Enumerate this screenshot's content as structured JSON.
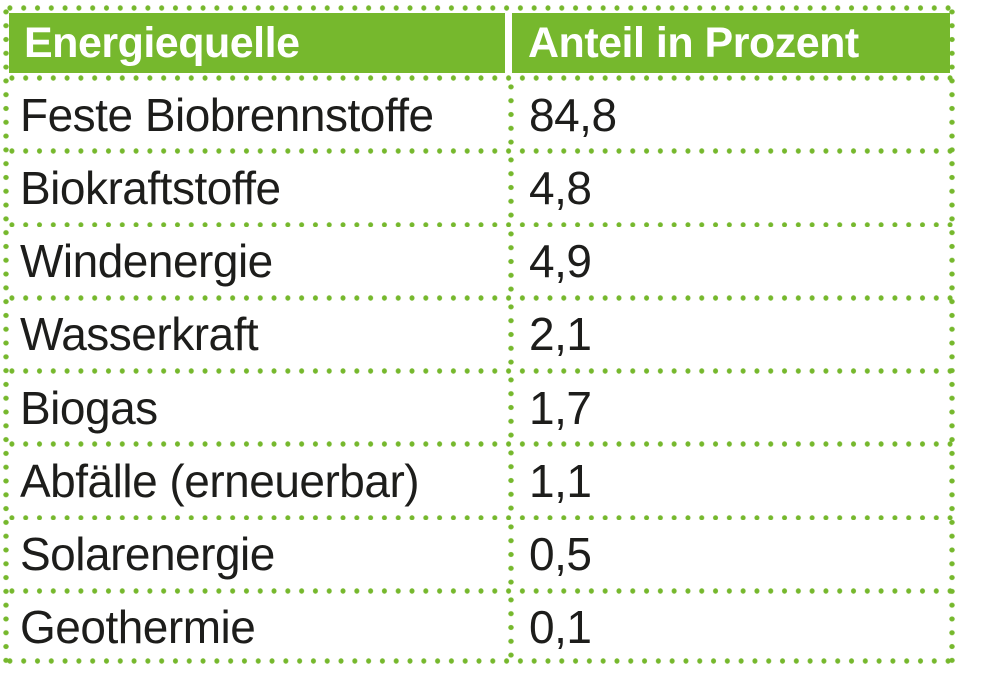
{
  "colors": {
    "accent_green": "#76b82d",
    "header_text": "#ffffff",
    "body_text": "#1d1d1b",
    "background": "#ffffff"
  },
  "table": {
    "headers": [
      {
        "label": "Energiequelle"
      },
      {
        "label": "Anteil in Prozent"
      }
    ],
    "rows": [
      {
        "source": "Feste Biobrennstoffe",
        "share": "84,8"
      },
      {
        "source": "Biokraftstoffe",
        "share": "4,8"
      },
      {
        "source": "Windenergie",
        "share": "4,9"
      },
      {
        "source": "Wasserkraft",
        "share": "2,1"
      },
      {
        "source": "Biogas",
        "share": "1,7"
      },
      {
        "source": "Abfälle (erneuerbar)",
        "share": "1,1"
      },
      {
        "source": "Solarenergie",
        "share": "0,5"
      },
      {
        "source": "Geothermie",
        "share": "0,1"
      }
    ]
  },
  "chart_data": {
    "type": "table",
    "title": "",
    "columns": [
      "Energiequelle",
      "Anteil in Prozent"
    ],
    "categories": [
      "Feste Biobrennstoffe",
      "Biokraftstoffe",
      "Windenergie",
      "Wasserkraft",
      "Biogas",
      "Abfälle (erneuerbar)",
      "Solarenergie",
      "Geothermie"
    ],
    "values": [
      84.8,
      4.8,
      4.9,
      2.1,
      1.7,
      1.1,
      0.5,
      0.1
    ],
    "value_unit": "percent",
    "decimal_separator": ",",
    "displayed_values": [
      "84,8",
      "4,8",
      "4,9",
      "2,1",
      "1,7",
      "1,1",
      "0,5",
      "0,1"
    ]
  }
}
